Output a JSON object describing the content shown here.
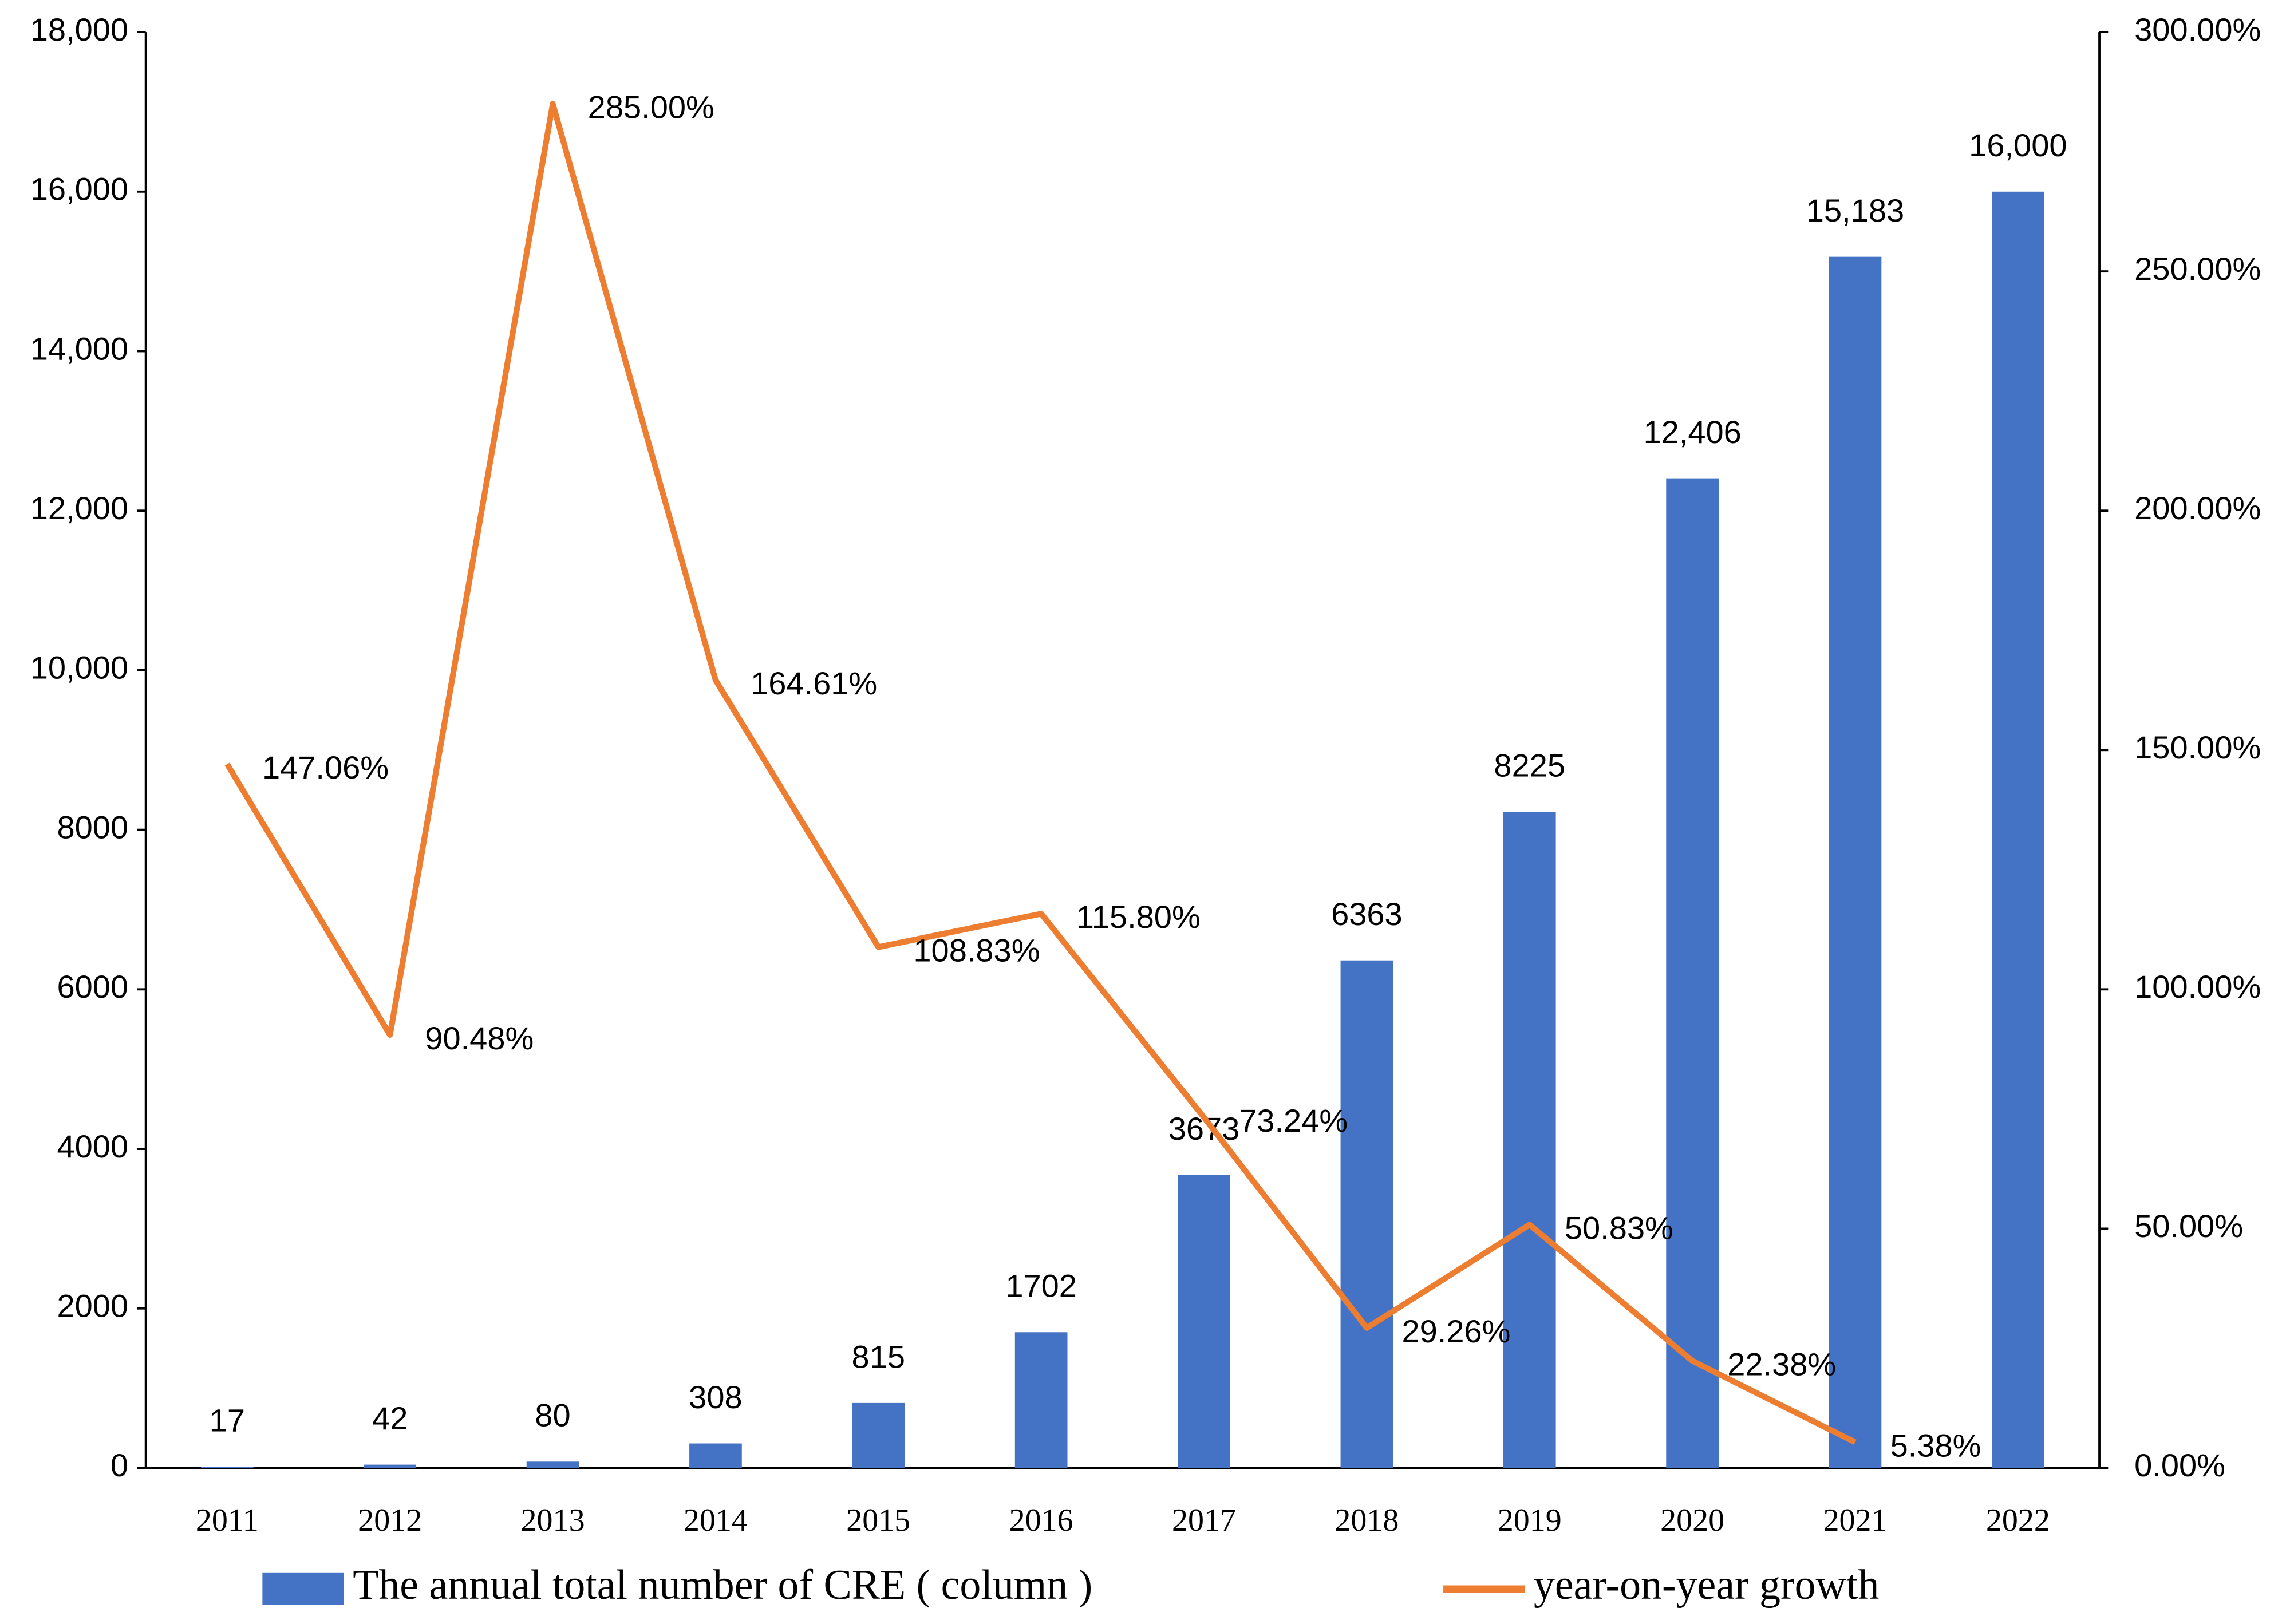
{
  "chart_data": {
    "type": "bar-line",
    "categories": [
      "2011",
      "2012",
      "2013",
      "2014",
      "2015",
      "2016",
      "2017",
      "2018",
      "2019",
      "2020",
      "2021",
      "2022"
    ],
    "series": [
      {
        "name": "The annual total number of CRE ( column )",
        "type": "bar",
        "color": "#4472c4",
        "values": [
          17,
          42,
          80,
          308,
          815,
          1702,
          3673,
          6363,
          8225,
          12406,
          15183,
          16000
        ],
        "value_labels": [
          "17",
          "42",
          "80",
          "308",
          "815",
          "1702",
          "3673",
          "6363",
          "8225",
          "12,406",
          "15,183",
          "16,000"
        ]
      },
      {
        "name": "year-on-year growth",
        "type": "line",
        "color": "#ed7d31",
        "axis": "y2",
        "values": [
          147.06,
          90.48,
          285.0,
          164.61,
          108.83,
          115.8,
          73.24,
          29.26,
          50.83,
          22.38,
          5.38,
          null
        ],
        "value_labels": [
          "147.06%",
          "90.48%",
          "285.00%",
          "164.61%",
          "108.83%",
          "115.80%",
          "73.24%",
          "29.26%",
          "50.83%",
          "22.38%",
          "5.38%",
          null
        ]
      }
    ],
    "ylim": [
      0,
      18000
    ],
    "yticks": [
      0,
      2000,
      4000,
      6000,
      8000,
      {
        "value": 10000,
        "label": "10,000"
      },
      {
        "value": 12000,
        "label": "12,000"
      },
      {
        "value": 14000,
        "label": "14,000"
      },
      {
        "value": 16000,
        "label": "16,000"
      },
      {
        "value": 18000,
        "label": "18,000"
      }
    ],
    "y2lim": [
      0,
      300
    ],
    "y2ticks": [
      {
        "value": 0,
        "label": "0.00%"
      },
      {
        "value": 50,
        "label": "50.00%"
      },
      {
        "value": 100,
        "label": "100.00%"
      },
      {
        "value": 150,
        "label": "150.00%"
      },
      {
        "value": 200,
        "label": "200.00%"
      },
      {
        "value": 250,
        "label": "250.00%"
      },
      {
        "value": 300,
        "label": "300.00%"
      }
    ],
    "grid": false,
    "legend": "bottom"
  }
}
